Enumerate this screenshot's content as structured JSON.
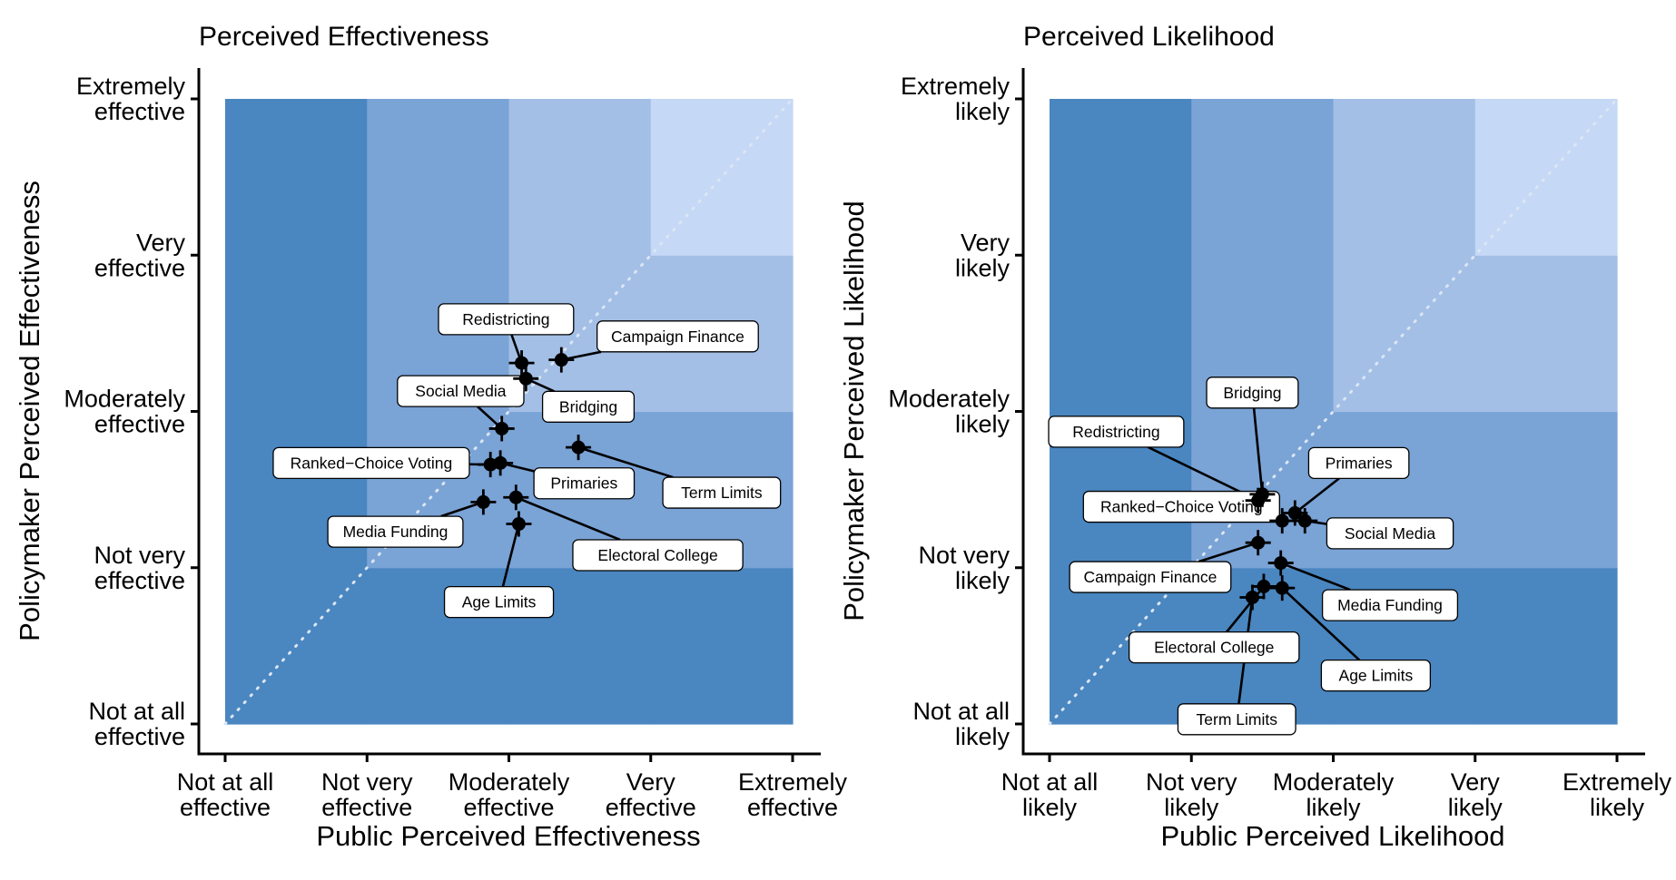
{
  "chart_data": [
    {
      "type": "scatter",
      "title": "Perceived Effectiveness",
      "xlabel": "Public Perceived Effectiveness",
      "ylabel": "Policymaker Perceived Effectiveness",
      "xlim": [
        1,
        5
      ],
      "ylim": [
        1,
        5
      ],
      "x_ticks": [
        {
          "value": 1,
          "lines": [
            "Not at all",
            "effective"
          ]
        },
        {
          "value": 2,
          "lines": [
            "Not very",
            "effective"
          ]
        },
        {
          "value": 3,
          "lines": [
            "Moderately",
            "effective"
          ]
        },
        {
          "value": 4,
          "lines": [
            "Very",
            "effective"
          ]
        },
        {
          "value": 5,
          "lines": [
            "Extremely",
            "effective"
          ]
        }
      ],
      "y_ticks": [
        {
          "value": 1,
          "lines": [
            "Not at all",
            "effective"
          ]
        },
        {
          "value": 2,
          "lines": [
            "Not very",
            "effective"
          ]
        },
        {
          "value": 3,
          "lines": [
            "Moderately",
            "effective"
          ]
        },
        {
          "value": 4,
          "lines": [
            "Very",
            "effective"
          ]
        },
        {
          "value": 5,
          "lines": [
            "Extremely",
            "effective"
          ]
        }
      ],
      "grid": false,
      "reference_line": "diagonal y = x (dotted)",
      "background_bands": "shaded by min(x, y) category",
      "points": [
        {
          "label": "Redistricting",
          "x": 3.09,
          "y": 3.31,
          "label_x": 2.98,
          "label_y": 3.59
        },
        {
          "label": "Campaign Finance",
          "x": 3.37,
          "y": 3.33,
          "label_x": 4.19,
          "label_y": 3.48
        },
        {
          "label": "Bridging",
          "x": 3.12,
          "y": 3.21,
          "label_x": 3.56,
          "label_y": 3.03
        },
        {
          "label": "Social Media",
          "x": 2.95,
          "y": 2.89,
          "label_x": 2.66,
          "label_y": 3.13
        },
        {
          "label": "Term Limits",
          "x": 3.49,
          "y": 2.77,
          "label_x": 4.5,
          "label_y": 2.48
        },
        {
          "label": "Ranked−Choice Voting",
          "x": 2.87,
          "y": 2.66,
          "label_x": 2.03,
          "label_y": 2.67
        },
        {
          "label": "Primaries",
          "x": 2.94,
          "y": 2.67,
          "label_x": 3.53,
          "label_y": 2.54
        },
        {
          "label": "Media Funding",
          "x": 2.82,
          "y": 2.42,
          "label_x": 2.2,
          "label_y": 2.23
        },
        {
          "label": "Electoral College",
          "x": 3.05,
          "y": 2.45,
          "label_x": 4.05,
          "label_y": 2.08
        },
        {
          "label": "Age Limits",
          "x": 3.07,
          "y": 2.28,
          "label_x": 2.93,
          "label_y": 1.78
        }
      ]
    },
    {
      "type": "scatter",
      "title": "Perceived Likelihood",
      "xlabel": "Public Perceived Likelihood",
      "ylabel": "Policymaker Perceived Likelihood",
      "xlim": [
        1,
        5
      ],
      "ylim": [
        1,
        5
      ],
      "x_ticks": [
        {
          "value": 1,
          "lines": [
            "Not at all",
            "likely"
          ]
        },
        {
          "value": 2,
          "lines": [
            "Not very",
            "likely"
          ]
        },
        {
          "value": 3,
          "lines": [
            "Moderately",
            "likely"
          ]
        },
        {
          "value": 4,
          "lines": [
            "Very",
            "likely"
          ]
        },
        {
          "value": 5,
          "lines": [
            "Extremely",
            "likely"
          ]
        }
      ],
      "y_ticks": [
        {
          "value": 1,
          "lines": [
            "Not at all",
            "likely"
          ]
        },
        {
          "value": 2,
          "lines": [
            "Not very",
            "likely"
          ]
        },
        {
          "value": 3,
          "lines": [
            "Moderately",
            "likely"
          ]
        },
        {
          "value": 4,
          "lines": [
            "Very",
            "likely"
          ]
        },
        {
          "value": 5,
          "lines": [
            "Extremely",
            "likely"
          ]
        }
      ],
      "grid": false,
      "reference_line": "diagonal y = x (dotted)",
      "background_bands": "shaded by min(x, y) category",
      "points": [
        {
          "label": "Bridging",
          "x": 2.5,
          "y": 2.47,
          "label_x": 2.43,
          "label_y": 3.12
        },
        {
          "label": "Redistricting",
          "x": 2.47,
          "y": 2.43,
          "label_x": 1.47,
          "label_y": 2.87
        },
        {
          "label": "Primaries",
          "x": 2.73,
          "y": 2.35,
          "label_x": 3.18,
          "label_y": 2.67
        },
        {
          "label": "Ranked−Choice Voting",
          "x": 2.64,
          "y": 2.3,
          "label_x": 1.93,
          "label_y": 2.39
        },
        {
          "label": "Social Media",
          "x": 2.8,
          "y": 2.3,
          "label_x": 3.4,
          "label_y": 2.22
        },
        {
          "label": "Campaign Finance",
          "x": 2.47,
          "y": 2.16,
          "label_x": 1.71,
          "label_y": 1.94
        },
        {
          "label": "Media Funding",
          "x": 2.63,
          "y": 2.03,
          "label_x": 3.4,
          "label_y": 1.76
        },
        {
          "label": "Electoral College",
          "x": 2.51,
          "y": 1.88,
          "label_x": 2.16,
          "label_y": 1.49
        },
        {
          "label": "Age Limits",
          "x": 2.64,
          "y": 1.87,
          "label_x": 3.3,
          "label_y": 1.31
        },
        {
          "label": "Term Limits",
          "x": 2.43,
          "y": 1.81,
          "label_x": 2.32,
          "label_y": 1.03
        }
      ]
    }
  ]
}
